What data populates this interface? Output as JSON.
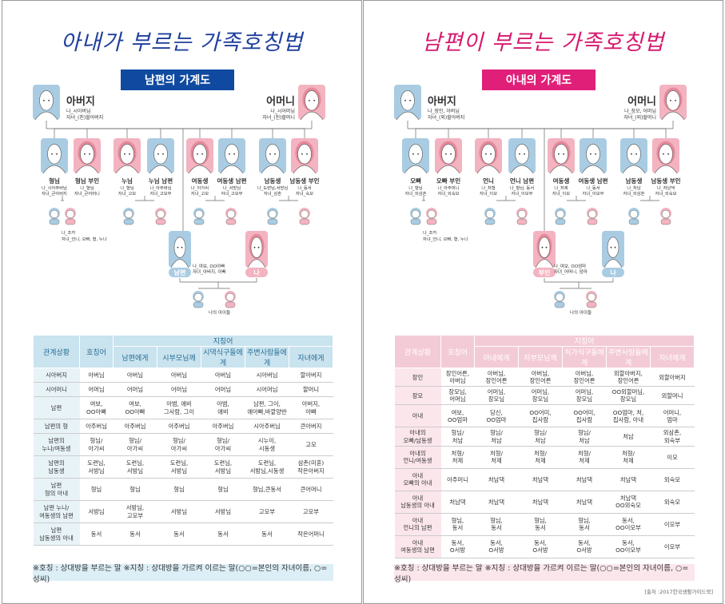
{
  "left": {
    "title": "아내가 부르는 가족호칭법",
    "band": "남편의 가계도",
    "father": {
      "name": "아버지",
      "sub1": "나_시아버님",
      "sub2": "자녀_(친)할아버지"
    },
    "mother": {
      "name": "어머니",
      "sub1": "나_시어머님",
      "sub2": "자녀_(친)할머니"
    },
    "siblings": [
      {
        "name": "형님",
        "s1": "나_시아주버님",
        "s2": "자녀_큰아버지"
      },
      {
        "name": "형님 부인",
        "s1": "나_형님",
        "s2": "자녀_큰어머니"
      },
      {
        "name": "누님",
        "s1": "나_형님",
        "s2": "자녀_고모"
      },
      {
        "name": "누님 남편",
        "s1": "나_아주버님",
        "s2": "자녀_고모부"
      },
      {
        "name": "여동생",
        "s1": "나_아가씨",
        "s2": "자녀_고모"
      },
      {
        "name": "여동생 남편",
        "s1": "나_서방님",
        "s2": "자녀_고모부"
      },
      {
        "name": "남동생",
        "s1": "나_도련님,서방님",
        "s2": "자녀_삼촌"
      },
      {
        "name": "남동생 부인",
        "s1": "나_동서",
        "s2": "자녀_숙모"
      }
    ],
    "nephew": {
      "s1": "나_조카",
      "s2": "자녀_언니, 오빠, 형, 누나"
    },
    "spouse_label": "남편",
    "me_label": "나",
    "spouse_sub1": "나_여보, OO아빠",
    "spouse_sub2": "자녀_아버지, 아빠",
    "children": "나의 아이들",
    "table": {
      "h1": "관계상황",
      "h2": "호칭어",
      "h3": "지칭어",
      "sub": [
        "남편에게",
        "시부모님께",
        "시댁식구들에게",
        "주변사람들에게",
        "자녀에게"
      ],
      "rows": [
        [
          "시아버지",
          "아버님",
          "아버님",
          "아버님",
          "아버님",
          "시아버님",
          "할아버지"
        ],
        [
          "시어머니",
          "어머님",
          "어머님",
          "어머님",
          "어머님",
          "시어머님",
          "할머니"
        ],
        [
          "남편",
          "여보,\nOO아빠",
          "여보,\nOO아빠",
          "아범, 애비\n그사람, 그이",
          "아범,\n애비",
          "남편, 그이,\n애아빠,바깥양반",
          "아버지,\n아빠"
        ],
        [
          "남편의 형",
          "아주버님",
          "아주버님",
          "아주버님",
          "아주버님",
          "시아주버님",
          "큰아버지"
        ],
        [
          "남편의\n누나/여동생",
          "형님/\n아가씨",
          "형님/\n아가씨",
          "형님/\n아가씨",
          "형님/\n아가씨",
          "시누이,\n시동생",
          "고모"
        ],
        [
          "남편의\n남동생",
          "도련님,\n서방님",
          "도련님,\n서방님",
          "도련님,\n서방님",
          "도련님,\n서방님",
          "도련님,\n서방님,시동생",
          "삼촌(미혼)\n작은아버지"
        ],
        [
          "남편\n형의 아내",
          "형님",
          "형님",
          "형님",
          "형님",
          "형님,큰동서",
          "큰어머니"
        ],
        [
          "남편 누나/\n여동생의 남편",
          "서방님",
          "서방님,\n고모부",
          "서방님",
          "서방님",
          "고모부",
          "고모부"
        ],
        [
          "남편\n남동생의 아내",
          "동서",
          "동서",
          "동서",
          "동서",
          "동서",
          "작은어머니"
        ]
      ]
    },
    "foot": "※호칭 : 상대방을 부르는 말   ※지칭 : 상대방을 가르켜 이르는 말(○○=본인의 자녀이름, ○=성씨)"
  },
  "right": {
    "title": "남편이 부르는 가족호칭법",
    "band": "아내의 가계도",
    "father": {
      "name": "아버지",
      "sub1": "나_장인, 아버님",
      "sub2": "자녀_(외)할아버지"
    },
    "mother": {
      "name": "어머니",
      "sub1": "나_장모, 어머님",
      "sub2": "자녀_(외)할머니"
    },
    "siblings": [
      {
        "name": "오빠",
        "s1": "나_형님",
        "s2": "자녀_외삼촌"
      },
      {
        "name": "오빠 부인",
        "s1": "나_아주머니",
        "s2": "자녀_외숙모"
      },
      {
        "name": "언니",
        "s1": "나_처형",
        "s2": "자녀_이모"
      },
      {
        "name": "언니 남편",
        "s1": "나_형님, 동서",
        "s2": "자녀_이모부"
      },
      {
        "name": "여동생",
        "s1": "나_처제",
        "s2": "자녀_이모"
      },
      {
        "name": "여동생 남편",
        "s1": "나_동서",
        "s2": "자녀_이모부"
      },
      {
        "name": "남동생",
        "s1": "나_처남",
        "s2": "자녀_외삼촌"
      },
      {
        "name": "남동생 부인",
        "s1": "나_처남댁",
        "s2": "자녀_외숙모"
      }
    ],
    "nephew": {
      "s1": "나_조카",
      "s2": "자녀_언니, 오빠, 형, 누나"
    },
    "spouse_label": "부인",
    "me_label": "나",
    "spouse_sub1": "나_여보, OO엄마",
    "spouse_sub2": "자녀_어머니, 엄마",
    "children": "나의 아이들",
    "table": {
      "h1": "관계상황",
      "h2": "호칭어",
      "h3": "지칭어",
      "sub": [
        "아내에게",
        "처부모님께",
        "처가식구들에게",
        "주변사람들에게",
        "자녀에게"
      ],
      "rows": [
        [
          "장인",
          "장인어른,\n아버님",
          "아버님,\n장인어른",
          "아버님,\n장인어른",
          "아버님,\n장인어른",
          "외할아버지,\n장인어른",
          "외할아버지"
        ],
        [
          "장모",
          "장모님,\n어머님",
          "어머님,\n장모님",
          "어머님,\n장모님",
          "어머님,\n장모님",
          "OO외할머님,\n장모님",
          "외할머니"
        ],
        [
          "아내",
          "여보,\nOO엄마",
          "당신,\nOO엄마",
          "OO어미,\n집사람",
          "OO어미,\n집사람",
          "OO엄마, 처,\n집사람, 아내",
          "어머니,\n엄마"
        ],
        [
          "아내의\n오빠/남동생",
          "형님/\n처남",
          "형님/\n처남",
          "형님/\n처남",
          "형님/\n처남",
          "처남",
          "외삼촌,\n외숙부"
        ],
        [
          "아내의\n언니/여동생",
          "처형/\n처제",
          "처형/\n처제",
          "처형/\n처제",
          "처형/\n처제",
          "처형/\n처제",
          "이모"
        ],
        [
          "아내\n오빠의 아내",
          "아주머니",
          "처남댁",
          "처남댁",
          "처남댁",
          "처남댁",
          "외숙모"
        ],
        [
          "아내\n남동생의 아내",
          "처남댁",
          "처남댁",
          "처남댁",
          "처남댁",
          "처남댁\nOO외숙모",
          "외숙모"
        ],
        [
          "아내\n언니의 남편",
          "형님,\n동서",
          "형님,\n동서",
          "형님,\n동서",
          "형님,\n동서",
          "동서,\nOO이모부",
          "이모부"
        ],
        [
          "아내\n여동생의 남편",
          "동서,\nO서방",
          "동서,\nO서방",
          "동서,\nO서방",
          "동서,\nO서방",
          "동서,\nOO이모부",
          "이모부"
        ]
      ]
    },
    "foot": "※호칭 : 상대방을 부르는 말   ※지칭 : 상대방을 가르켜 이르는 말(○○=본인의 자녀이름, ○=성씨)",
    "source": "[출처 :2017한국생활가이드북]"
  },
  "colors": {
    "blue": "#a9cce3",
    "pink": "#f3b3c0",
    "blue_dark": "#0f4aa0",
    "pink_dark": "#e01f79",
    "title_blue": "#1e3f9c",
    "title_pink": "#d6186e"
  }
}
